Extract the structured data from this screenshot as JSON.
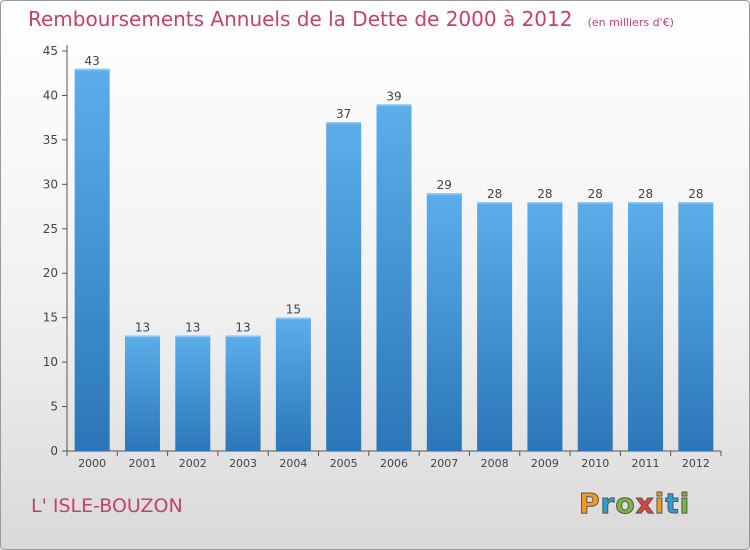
{
  "header": {
    "title": "Remboursements Annuels de la Dette de 2000 à 2012",
    "unit": "(en milliers d'€)"
  },
  "footer": {
    "commune": "L' ISLE-BOUZON",
    "logo": "Proxiti",
    "logo_colors": [
      "#f39a1f",
      "#2aa0d8",
      "#79b83a",
      "#e8403a",
      "#f39a1f",
      "#2aa0d8",
      "#79b83a"
    ]
  },
  "chart_data": {
    "type": "bar",
    "categories": [
      "2000",
      "2001",
      "2002",
      "2003",
      "2004",
      "2005",
      "2006",
      "2007",
      "2008",
      "2009",
      "2010",
      "2011",
      "2012"
    ],
    "values": [
      43,
      13,
      13,
      13,
      15,
      37,
      39,
      29,
      28,
      28,
      28,
      28,
      28
    ],
    "ylim": [
      0,
      45
    ],
    "yticks": [
      0,
      5,
      10,
      15,
      20,
      25,
      30,
      35,
      40,
      45
    ],
    "grid": false,
    "bar_color": "#3b8fd6",
    "bar_color_light": "#5caeea",
    "bar_color_dark": "#2b76b8",
    "data_labels": true
  }
}
